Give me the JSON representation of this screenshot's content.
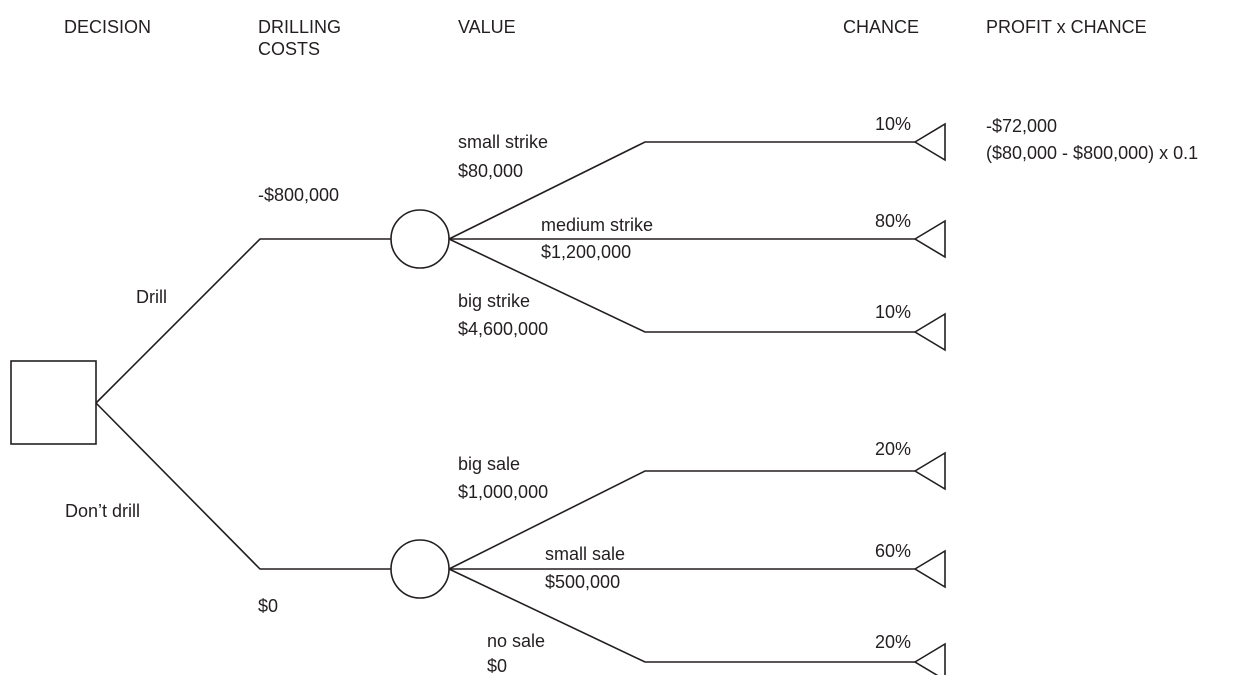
{
  "headers": [
    {
      "lines": [
        "DECISION"
      ]
    },
    {
      "lines": [
        "DRILLING",
        "COSTS"
      ]
    },
    {
      "lines": [
        "VALUE"
      ]
    },
    {
      "lines": [
        "CHANCE"
      ]
    },
    {
      "lines": [
        "PROFIT x CHANCE"
      ]
    }
  ],
  "decisions": [
    {
      "label": "Drill",
      "cost": "-$800,000",
      "outcomes": [
        {
          "name": "small strike",
          "value": "$80,000",
          "chance": "10%"
        },
        {
          "name": "medium strike",
          "value": "$1,200,000",
          "chance": "80%"
        },
        {
          "name": "big strike",
          "value": "$4,600,000",
          "chance": "10%"
        }
      ]
    },
    {
      "label": "Don’t drill",
      "cost": "$0",
      "outcomes": [
        {
          "name": "big sale",
          "value": "$1,000,000",
          "chance": "20%"
        },
        {
          "name": "small sale",
          "value": "$500,000",
          "chance": "60%"
        },
        {
          "name": "no sale",
          "value": "$0",
          "chance": "20%"
        }
      ]
    }
  ],
  "annotation": {
    "lines": [
      "-$72,000",
      "($80,000 - $800,000) x 0.1"
    ]
  }
}
